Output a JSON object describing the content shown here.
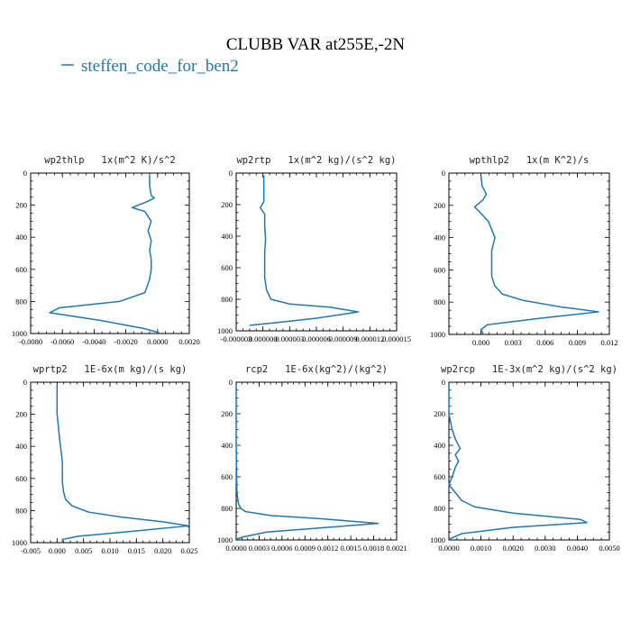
{
  "figure": {
    "title": "CLUBB VAR at255E,-2N",
    "legend_label": "steffen_code_for_ben2",
    "series_color": "#1f77b4"
  },
  "chart_data": [
    {
      "type": "line",
      "title": "wp2thlp   1x(m^2 K)/s^2",
      "xlim": [
        -0.008,
        0.002
      ],
      "ylim": [
        1000,
        0
      ],
      "xticks": [
        "-0.0080",
        "-0.0060",
        "-0.0040",
        "-0.0020",
        "0.0000",
        "0.0020"
      ],
      "yticks": [
        "0",
        "200",
        "400",
        "600",
        "800",
        "1000"
      ],
      "series": [
        {
          "x": [
            -0.0005,
            -0.0005,
            -0.0004,
            -0.0002,
            -0.0006,
            -0.0016,
            -0.0008,
            -0.0004,
            -0.0006,
            -0.0004,
            -0.0005,
            -0.0004,
            -0.0004,
            -0.0005,
            -0.0008,
            -0.0024,
            -0.0062,
            -0.0068,
            -0.0035,
            -0.0008,
            0.0001
          ],
          "y": [
            15,
            80,
            140,
            155,
            175,
            215,
            240,
            300,
            360,
            420,
            480,
            540,
            600,
            660,
            745,
            800,
            840,
            870,
            920,
            970,
            995
          ]
        }
      ]
    },
    {
      "type": "line",
      "title": "wp2rtp   1x(m^2 kg)/(s^2 kg)",
      "xlim": [
        -3e-06,
        1.5e-05
      ],
      "ylim": [
        1000,
        0
      ],
      "xticks": [
        "-0.000003",
        "0.000000",
        "0.000003",
        "0.000006",
        "0.000009",
        "0.000012",
        "0.000015"
      ],
      "yticks": [
        "0",
        "200",
        "400",
        "600",
        "800",
        "1000"
      ],
      "series": [
        {
          "x": [
            1e-07,
            1e-07,
            1e-07,
            -3e-07,
            2e-07,
            2e-07,
            3e-07,
            2e-07,
            2e-07,
            2e-07,
            4e-07,
            9e-07,
            3e-06,
            7.5e-06,
            1.07e-05,
            6e-06,
            1.2e-06,
            -1.5e-06
          ],
          "y": [
            15,
            80,
            180,
            220,
            260,
            340,
            420,
            500,
            580,
            660,
            740,
            800,
            830,
            850,
            880,
            920,
            950,
            965
          ]
        }
      ]
    },
    {
      "type": "line",
      "title": "wpthlp2   1x(m K^2)/s",
      "xlim": [
        -0.003,
        0.012
      ],
      "ylim": [
        1000,
        0
      ],
      "xticks": [
        "0.000",
        "0.003",
        "0.006",
        "0.009",
        "0.012"
      ],
      "yticks": [
        "0",
        "200",
        "400",
        "600",
        "800",
        "1000"
      ],
      "series": [
        {
          "x": [
            0.0,
            0.0001,
            0.0005,
            0.0002,
            -0.0006,
            0.0,
            0.0007,
            0.0013,
            0.001,
            0.001,
            0.001,
            0.0013,
            0.002,
            0.004,
            0.0075,
            0.011,
            0.0055,
            0.0006,
            0.0,
            0.0002
          ],
          "y": [
            15,
            80,
            130,
            165,
            210,
            250,
            300,
            400,
            480,
            560,
            640,
            700,
            750,
            790,
            830,
            860,
            900,
            940,
            970,
            995
          ]
        }
      ]
    },
    {
      "type": "line",
      "title": "wprtp2   1E-6x(m kg)/(s kg)",
      "xlim": [
        -0.005,
        0.025
      ],
      "ylim": [
        1000,
        0
      ],
      "xticks": [
        "-0.005",
        "0.000",
        "0.005",
        "0.010",
        "0.015",
        "0.020",
        "0.025"
      ],
      "yticks": [
        "0",
        "200",
        "400",
        "600",
        "800",
        "1000"
      ],
      "series": [
        {
          "x": [
            0.0,
            0.0,
            0.0005,
            0.0008,
            0.001,
            0.001,
            0.001,
            0.0012,
            0.0016,
            0.0028,
            0.006,
            0.012,
            0.02,
            0.0249,
            0.014,
            0.004,
            0.001,
            0.001
          ],
          "y": [
            15,
            200,
            360,
            440,
            500,
            560,
            620,
            680,
            730,
            770,
            810,
            840,
            870,
            895,
            930,
            960,
            980,
            995
          ]
        }
      ]
    },
    {
      "type": "line",
      "title": "rcp2   1E-6x(kg^2)/(kg^2)",
      "xlim": [
        0.0,
        0.0021
      ],
      "ylim": [
        1000,
        0
      ],
      "xticks": [
        "0.0000",
        "0.0003",
        "0.0006",
        "0.0009",
        "0.0012",
        "0.0015",
        "0.0018",
        "0.0021"
      ],
      "yticks": [
        "0",
        "200",
        "400",
        "600",
        "800",
        "1000"
      ],
      "series": [
        {
          "x": [
            0.0,
            0.0,
            1e-05,
            3e-05,
            6e-05,
            0.00012,
            0.00045,
            0.0011,
            0.00186,
            0.0012,
            0.0004,
            0.0001,
            0.0
          ],
          "y": [
            15,
            400,
            700,
            770,
            800,
            820,
            845,
            865,
            895,
            920,
            950,
            980,
            995
          ]
        }
      ]
    },
    {
      "type": "line",
      "title": "wp2rcp   1E-3x(m^2 kg)/(s^2 kg)",
      "xlim": [
        0.0,
        0.005
      ],
      "ylim": [
        1000,
        0
      ],
      "xticks": [
        "0.0000",
        "0.0010",
        "0.0020",
        "0.0030",
        "0.0040",
        "0.0050"
      ],
      "yticks": [
        "0",
        "200",
        "400",
        "600",
        "800",
        "1000"
      ],
      "series": [
        {
          "x": [
            0.0,
            0.0,
            0.0001,
            0.0002,
            0.00035,
            0.0002,
            0.0003,
            0.0002,
            0.0001,
            0.0,
            0.0002,
            0.0004,
            0.0008,
            0.002,
            0.0041,
            0.0043,
            0.002,
            0.0004,
            0.0
          ],
          "y": [
            15,
            200,
            300,
            360,
            420,
            460,
            500,
            540,
            600,
            650,
            700,
            750,
            790,
            830,
            870,
            890,
            920,
            960,
            995
          ]
        }
      ]
    }
  ]
}
